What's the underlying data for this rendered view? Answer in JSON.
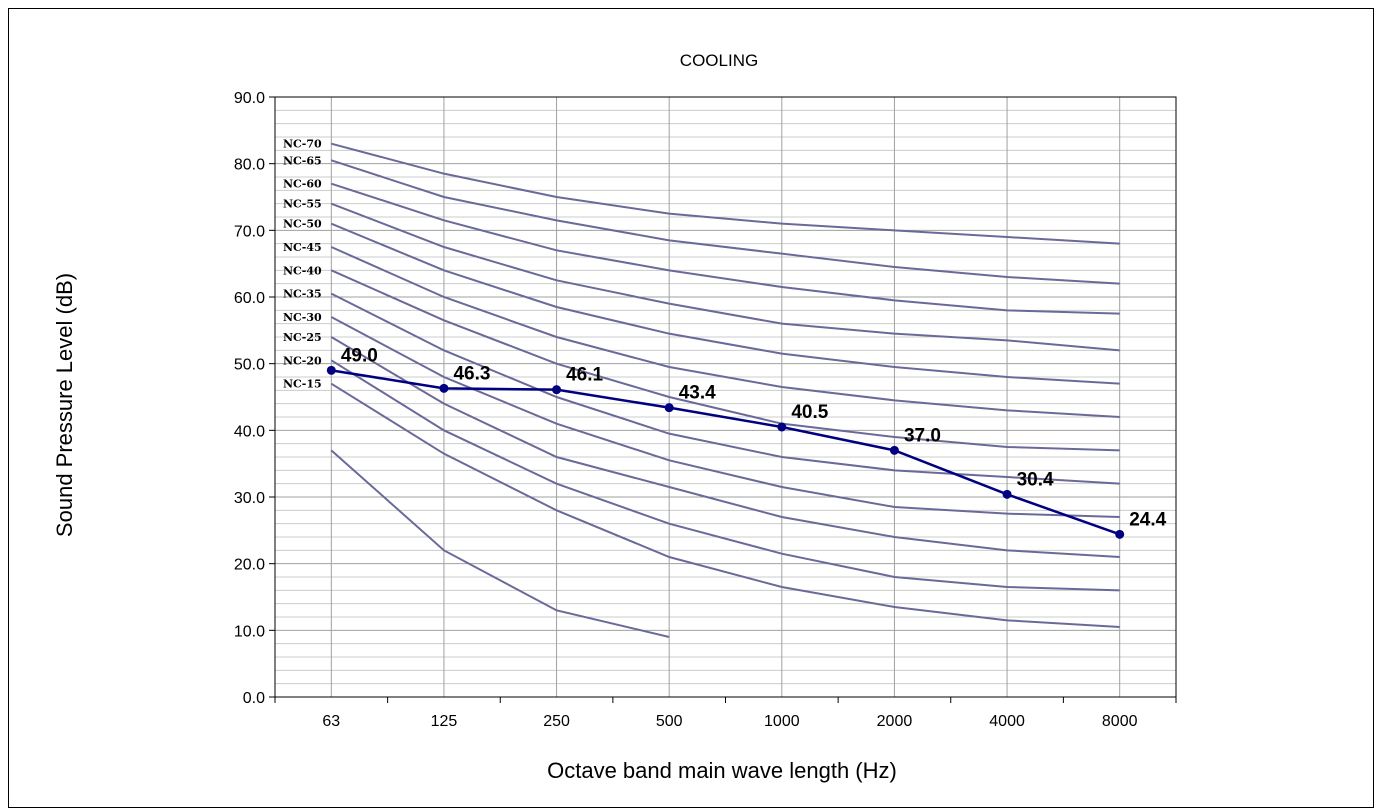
{
  "chart_data": {
    "type": "line",
    "title": "COOLING",
    "xlabel": "Octave band main wave length (Hz)",
    "ylabel": "Sound Pressure  Level (dB)",
    "categories": [
      "63",
      "125",
      "250",
      "500",
      "1000",
      "2000",
      "4000",
      "8000"
    ],
    "ylim": [
      0,
      90
    ],
    "yticks": [
      "0.0",
      "10.0",
      "20.0",
      "30.0",
      "40.0",
      "50.0",
      "60.0",
      "70.0",
      "80.0",
      "90.0"
    ],
    "minor_grid_step": 2,
    "grid": true,
    "colors": {
      "nc_curve": "#6a6a9a",
      "measured": "#000080",
      "grid_major": "#a0a0a0",
      "grid_minor": "#cccccc"
    },
    "nc_curves": [
      {
        "name": "NC-70",
        "values": [
          83,
          78.5,
          75,
          72.5,
          71,
          70,
          69,
          68
        ]
      },
      {
        "name": "NC-65",
        "values": [
          80.5,
          75,
          71.5,
          68.5,
          66.5,
          64.5,
          63,
          62
        ]
      },
      {
        "name": "NC-60",
        "values": [
          77,
          71.5,
          67,
          64,
          61.5,
          59.5,
          58,
          57.5
        ]
      },
      {
        "name": "NC-55",
        "values": [
          74,
          67.5,
          62.5,
          59,
          56,
          54.5,
          53.5,
          52
        ]
      },
      {
        "name": "NC-50",
        "values": [
          71,
          64,
          58.5,
          54.5,
          51.5,
          49.5,
          48,
          47
        ]
      },
      {
        "name": "NC-45",
        "values": [
          67.5,
          60,
          54,
          49.5,
          46.5,
          44.5,
          43,
          42
        ]
      },
      {
        "name": "NC-40",
        "values": [
          64,
          56.5,
          50,
          45,
          41,
          39,
          37.5,
          37
        ]
      },
      {
        "name": "NC-35",
        "values": [
          60.5,
          52,
          45,
          39.5,
          36,
          34,
          33,
          32
        ]
      },
      {
        "name": "NC-30",
        "values": [
          57,
          48,
          41,
          35.5,
          31.5,
          28.5,
          27.5,
          27
        ]
      },
      {
        "name": "NC-25",
        "values": [
          54,
          44,
          36,
          31.5,
          27,
          24,
          22,
          21
        ]
      },
      {
        "name": "NC-20",
        "values": [
          50.5,
          40,
          32,
          26,
          21.5,
          18,
          16.5,
          16
        ]
      },
      {
        "name": "NC-15",
        "values": [
          47,
          36.5,
          28,
          21,
          16.5,
          13.5,
          11.5,
          10.5
        ]
      },
      {
        "name": "",
        "values": [
          37,
          22,
          13,
          9
        ]
      }
    ],
    "series": [
      {
        "values": [
          49.0,
          46.3,
          46.1,
          43.4,
          40.5,
          37.0,
          30.4,
          24.4
        ],
        "labels": [
          "49.0",
          "46.3",
          "46.1",
          "43.4",
          "40.5",
          "37.0",
          "30.4",
          "24.4"
        ]
      }
    ]
  }
}
